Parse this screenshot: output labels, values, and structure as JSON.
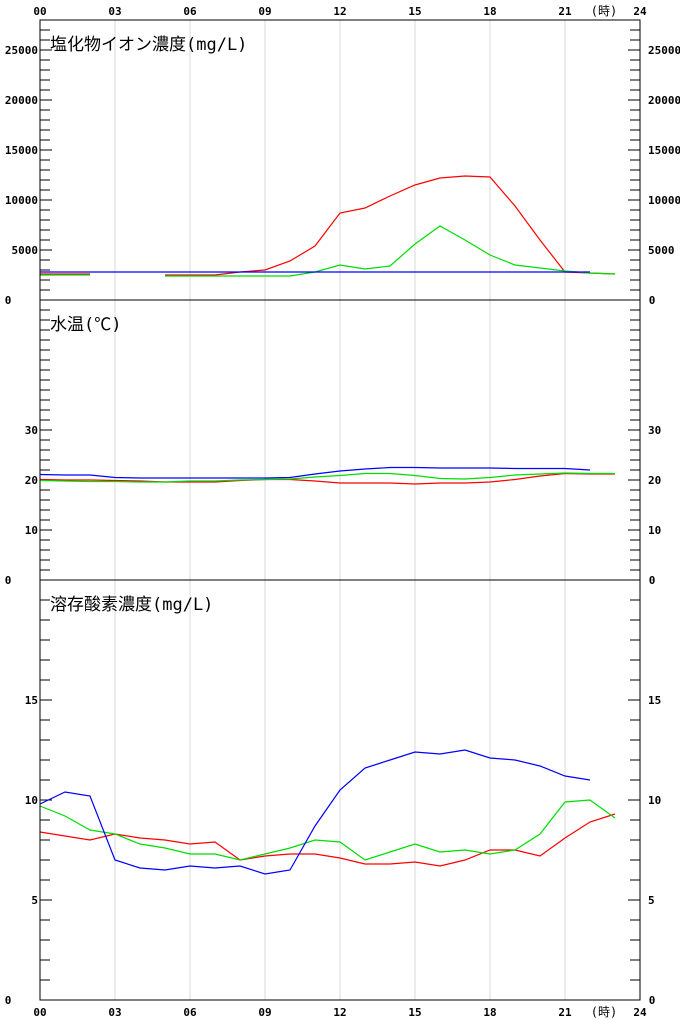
{
  "x_axis": {
    "ticks": [
      "00",
      "03",
      "06",
      "09",
      "12",
      "15",
      "18",
      "21",
      "24"
    ],
    "unit": "(時)"
  },
  "colors": {
    "red": "#ff0000",
    "green": "#00dd00",
    "blue": "#0000ff",
    "grid": "#d8d8d8",
    "frame": "#000000"
  },
  "chart_data": [
    {
      "type": "line",
      "title": "塩化物イオン濃度(mg/L)",
      "ylim": [
        0,
        28000
      ],
      "yticks": [
        "5000",
        "10000",
        "15000",
        "20000",
        "25000"
      ],
      "bottom_label": "0",
      "minor_step": 1000,
      "x": [
        0,
        1,
        2,
        3,
        4,
        5,
        6,
        7,
        8,
        9,
        10,
        11,
        12,
        13,
        14,
        15,
        16,
        17,
        18,
        19,
        20,
        21,
        22,
        23
      ],
      "series": [
        {
          "color": "red",
          "values": [
            2600,
            2600,
            2600,
            null,
            null,
            2500,
            2500,
            2500,
            2800,
            3000,
            3900,
            5400,
            8700,
            9200,
            10400,
            11500,
            12200,
            12400,
            12300,
            9400,
            6000,
            2800,
            2700,
            2600
          ]
        },
        {
          "color": "green",
          "values": [
            2500,
            2500,
            2500,
            null,
            null,
            2400,
            2400,
            2400,
            2400,
            2400,
            2400,
            2800,
            3500,
            3100,
            3400,
            5600,
            7400,
            6000,
            4500,
            3500,
            3200,
            2900,
            2700,
            2600
          ]
        },
        {
          "color": "blue",
          "values": [
            2800,
            2800,
            2800,
            2800,
            2800,
            2800,
            2800,
            2800,
            2800,
            2800,
            2800,
            2800,
            2800,
            2800,
            2800,
            2800,
            2800,
            2800,
            2800,
            2800,
            2800,
            2800,
            2800,
            null
          ]
        }
      ]
    },
    {
      "type": "line",
      "title": "水温(℃)",
      "ylim": [
        0,
        56
      ],
      "yticks": [
        "10",
        "20",
        "30"
      ],
      "bottom_label": "0",
      "minor_step": 2,
      "x": [
        0,
        1,
        2,
        3,
        4,
        5,
        6,
        7,
        8,
        9,
        10,
        11,
        12,
        13,
        14,
        15,
        16,
        17,
        18,
        19,
        20,
        21,
        22,
        23
      ],
      "series": [
        {
          "color": "red",
          "values": [
            20.1,
            20.0,
            20.0,
            19.9,
            19.8,
            19.6,
            19.6,
            19.6,
            19.9,
            20.1,
            20.1,
            19.8,
            19.4,
            19.4,
            19.4,
            19.2,
            19.4,
            19.4,
            19.6,
            20.1,
            20.8,
            21.3,
            21.2,
            21.2
          ]
        },
        {
          "color": "green",
          "values": [
            19.9,
            19.8,
            19.7,
            19.7,
            19.6,
            19.6,
            19.8,
            19.8,
            20.0,
            20.1,
            20.2,
            20.6,
            20.9,
            21.3,
            21.3,
            20.9,
            20.3,
            20.2,
            20.5,
            21.0,
            21.2,
            21.4,
            21.3,
            21.3
          ]
        },
        {
          "color": "blue",
          "values": [
            21.1,
            21.0,
            21.0,
            20.5,
            20.4,
            20.4,
            20.4,
            20.4,
            20.4,
            20.4,
            20.5,
            21.2,
            21.8,
            22.2,
            22.5,
            22.5,
            22.4,
            22.4,
            22.4,
            22.3,
            22.3,
            22.3,
            22.0,
            null
          ]
        }
      ]
    },
    {
      "type": "line",
      "title": "溶存酸素濃度(mg/L)",
      "ylim": [
        0,
        21
      ],
      "yticks": [
        "5",
        "10",
        "15"
      ],
      "bottom_label": "0",
      "minor_step": 1,
      "x": [
        0,
        1,
        2,
        3,
        4,
        5,
        6,
        7,
        8,
        9,
        10,
        11,
        12,
        13,
        14,
        15,
        16,
        17,
        18,
        19,
        20,
        21,
        22,
        23
      ],
      "series": [
        {
          "color": "red",
          "values": [
            8.4,
            8.2,
            8.0,
            8.3,
            8.1,
            8.0,
            7.8,
            7.9,
            7.0,
            7.2,
            7.3,
            7.3,
            7.1,
            6.8,
            6.8,
            6.9,
            6.7,
            7.0,
            7.5,
            7.5,
            7.2,
            8.1,
            8.9,
            9.3
          ]
        },
        {
          "color": "green",
          "values": [
            9.7,
            9.2,
            8.5,
            8.3,
            7.8,
            7.6,
            7.3,
            7.3,
            7.0,
            7.3,
            7.6,
            8.0,
            7.9,
            7.0,
            7.4,
            7.8,
            7.4,
            7.5,
            7.3,
            7.5,
            8.3,
            9.9,
            10.0,
            9.1
          ]
        },
        {
          "color": "blue",
          "values": [
            9.8,
            10.4,
            10.2,
            7.0,
            6.6,
            6.5,
            6.7,
            6.6,
            6.7,
            6.3,
            6.5,
            8.7,
            10.5,
            11.6,
            12.0,
            12.4,
            12.3,
            12.5,
            12.1,
            12.0,
            11.7,
            11.2,
            11.0,
            null
          ]
        }
      ]
    }
  ]
}
